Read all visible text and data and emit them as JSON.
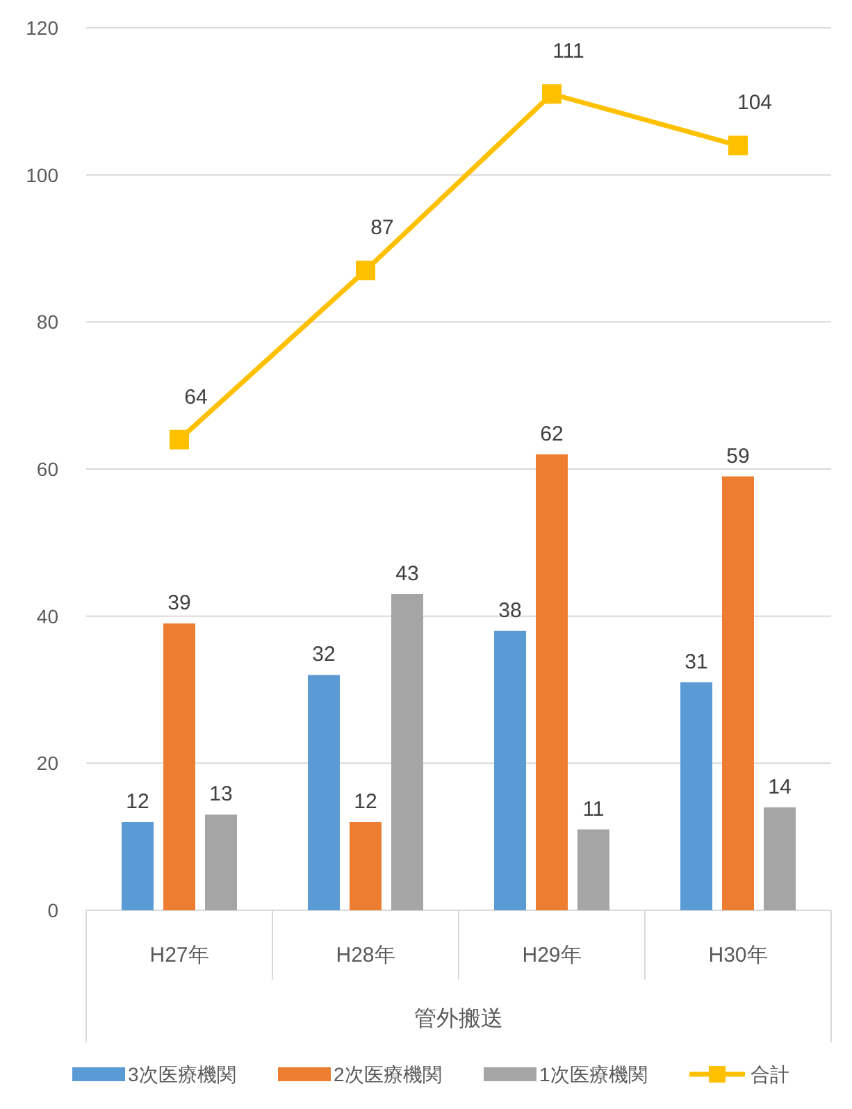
{
  "chart_data": {
    "type": "bar",
    "categories": [
      "H27年",
      "H28年",
      "H29年",
      "H30年"
    ],
    "xlabel": "管外搬送",
    "series": [
      {
        "name": "3次医療機関",
        "color": "#5b9bd5",
        "values": [
          12,
          32,
          38,
          31
        ]
      },
      {
        "name": "2次医療機関",
        "color": "#ed7d31",
        "values": [
          39,
          12,
          62,
          59
        ]
      },
      {
        "name": "1次医療機関",
        "color": "#a5a5a5",
        "values": [
          13,
          43,
          11,
          14
        ]
      },
      {
        "name": "合計",
        "type": "line",
        "color": "#ffc000",
        "values": [
          64,
          87,
          111,
          104
        ]
      }
    ],
    "ylim": [
      0,
      120
    ],
    "yticks": [
      0,
      20,
      40,
      60,
      80,
      100,
      120
    ],
    "grid": "y",
    "legend": "bottom",
    "marker": "square",
    "line_style": "solid",
    "data_labels": true
  }
}
